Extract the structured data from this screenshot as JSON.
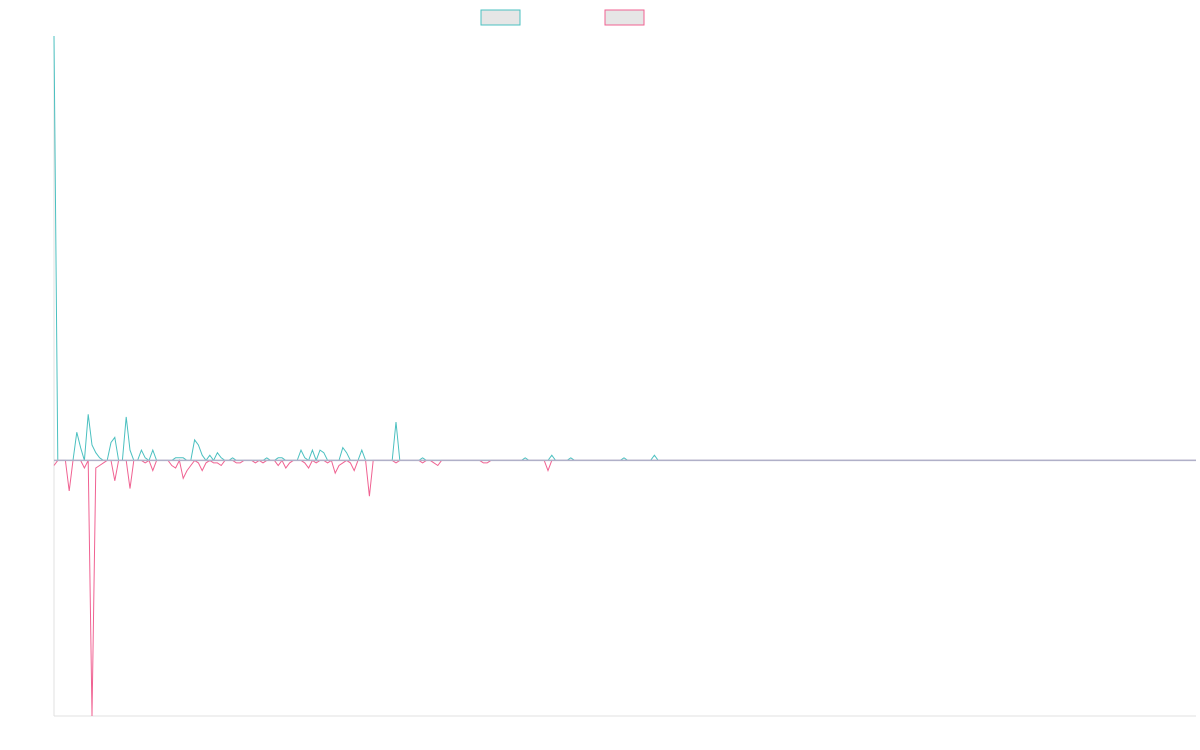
{
  "chart_data": {
    "type": "line",
    "title": "",
    "xlabel": "",
    "ylabel": "",
    "grid": false,
    "legend_position": "top-center",
    "ylim": [
      -1.0,
      1.66
    ],
    "series": [
      {
        "color": "#4bc0c0",
        "fill": "#e6e6e6",
        "values": [
          1.66,
          0,
          0,
          0,
          0,
          0,
          0.11,
          0.05,
          0,
          0.18,
          0.06,
          0.03,
          0.01,
          0,
          0,
          0.07,
          0.09,
          0,
          0,
          0.17,
          0.04,
          0,
          0,
          0.04,
          0.01,
          0,
          0.04,
          0,
          0,
          0,
          0,
          0,
          0.01,
          0.01,
          0.01,
          0,
          0,
          0.08,
          0.06,
          0.02,
          0,
          0.02,
          0,
          0.03,
          0.01,
          0,
          0,
          0.01,
          0,
          0,
          0,
          0,
          0,
          0,
          0,
          0,
          0.01,
          0,
          0,
          0.01,
          0.01,
          0,
          0,
          0,
          0,
          0.04,
          0.01,
          0,
          0.04,
          0,
          0.04,
          0.03,
          0,
          0,
          0,
          0,
          0.05,
          0.03,
          0,
          0,
          0,
          0.04,
          0,
          0,
          0,
          0,
          0,
          0,
          0,
          0,
          0.15,
          0,
          0,
          0,
          0,
          0,
          0,
          0.01,
          0,
          0,
          0,
          0,
          0,
          0,
          0,
          0,
          0,
          0,
          0,
          0,
          0,
          0,
          0,
          0,
          0,
          0,
          0,
          0,
          0,
          0,
          0,
          0,
          0,
          0,
          0.01,
          0,
          0,
          0,
          0,
          0,
          0,
          0.02,
          0,
          0,
          0,
          0,
          0.01,
          0,
          0,
          0,
          0,
          0,
          0,
          0,
          0,
          0,
          0,
          0,
          0,
          0,
          0.01,
          0,
          0,
          0,
          0,
          0,
          0,
          0,
          0.02,
          0,
          0,
          0,
          0,
          0,
          0,
          0,
          0,
          0,
          0,
          0,
          0,
          0,
          0,
          0,
          0,
          0,
          0
        ]
      },
      {
        "color": "#f06292",
        "fill": "#e6e6e6",
        "values": [
          -0.02,
          0,
          0,
          0,
          -0.12,
          0,
          0,
          0,
          -0.03,
          0,
          -1.0,
          -0.03,
          -0.02,
          -0.01,
          0,
          0,
          -0.08,
          0,
          0,
          0,
          -0.11,
          0,
          0,
          0,
          -0.01,
          0,
          -0.04,
          0,
          0,
          0,
          0,
          -0.02,
          -0.03,
          0,
          -0.07,
          -0.04,
          -0.02,
          0,
          -0.01,
          -0.04,
          -0.01,
          0,
          -0.01,
          -0.01,
          -0.02,
          0,
          0,
          0,
          -0.01,
          -0.01,
          0,
          0,
          0,
          -0.01,
          0,
          -0.01,
          0,
          0,
          0,
          -0.02,
          0,
          -0.03,
          -0.01,
          0,
          0,
          0,
          -0.01,
          -0.03,
          0,
          -0.01,
          0,
          0,
          -0.01,
          0,
          -0.05,
          -0.02,
          -0.01,
          0,
          -0.01,
          -0.04,
          0,
          0,
          0,
          -0.14,
          0,
          0,
          0,
          0,
          0,
          0,
          -0.01,
          0,
          0,
          0,
          0,
          0,
          0,
          -0.01,
          0,
          0,
          -0.01,
          -0.02,
          0,
          0,
          0,
          0,
          0,
          0,
          0,
          0,
          0,
          0,
          0,
          -0.01,
          -0.01,
          0,
          0,
          0,
          0,
          0,
          0,
          0,
          0,
          0,
          0,
          0,
          0,
          0,
          0,
          0,
          -0.04,
          0,
          0,
          0,
          0,
          0,
          0,
          0,
          0,
          0,
          0,
          0,
          0,
          0,
          0,
          0,
          0,
          0,
          0,
          0,
          0,
          0,
          0,
          0,
          0,
          0,
          0,
          0,
          0,
          0,
          0,
          0,
          0,
          0,
          0,
          0,
          0,
          0,
          0,
          0,
          0,
          0,
          0,
          0,
          0,
          0,
          0,
          0,
          0,
          0,
          0,
          0,
          0,
          0,
          0
        ]
      }
    ]
  }
}
